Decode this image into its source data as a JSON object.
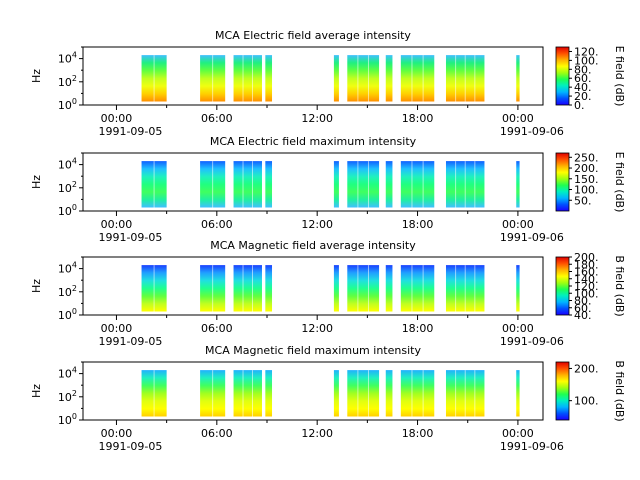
{
  "chart_data": [
    {
      "type": "heatmap",
      "title": "MCA  Electric field average intensity",
      "ylabel": "Hz",
      "yscale": "log",
      "ylim": [
        1,
        100000
      ],
      "y_ticks": [
        {
          "exp": "0"
        },
        {
          "exp": "2"
        },
        {
          "exp": "4"
        }
      ],
      "x_ticks": [
        "00:00",
        "06:00",
        "12:00",
        "18:00",
        "00:00"
      ],
      "x_start_date": "1991-09-05",
      "x_end_date": "1991-09-06",
      "xlim": [
        "1991-09-04 22:00",
        "1991-09-06 01:30"
      ],
      "colorbar": {
        "label": "E field (dB)",
        "range": [
          0,
          130
        ],
        "ticks": [
          "0.",
          "20.",
          "40.",
          "60.",
          "80.",
          "100.",
          "120."
        ]
      },
      "data_intervals_utc_hours": [
        [
          1.5,
          3.0
        ],
        [
          5.0,
          6.5
        ],
        [
          7.0,
          8.7
        ],
        [
          8.9,
          9.3
        ],
        [
          13.0,
          13.3
        ],
        [
          13.8,
          15.7
        ],
        [
          16.1,
          16.5
        ],
        [
          17.0,
          19.0
        ],
        [
          19.7,
          22.0
        ],
        [
          23.9,
          24.1
        ]
      ],
      "palette": "rainbow"
    },
    {
      "type": "heatmap",
      "title": "MCA  Electric field maximum intensity",
      "ylabel": "Hz",
      "yscale": "log",
      "ylim": [
        1,
        100000
      ],
      "y_ticks": [
        {
          "exp": "0"
        },
        {
          "exp": "2"
        },
        {
          "exp": "4"
        }
      ],
      "x_ticks": [
        "00:00",
        "06:00",
        "12:00",
        "18:00",
        "00:00"
      ],
      "x_start_date": "1991-09-05",
      "x_end_date": "1991-09-06",
      "xlim": [
        "1991-09-04 22:00",
        "1991-09-06 01:30"
      ],
      "colorbar": {
        "label": "E field (dB)",
        "range": [
          0,
          270
        ],
        "ticks": [
          "50.",
          "100.",
          "150.",
          "200.",
          "250."
        ]
      },
      "data_intervals_utc_hours": [
        [
          1.5,
          3.0
        ],
        [
          5.0,
          6.5
        ],
        [
          7.0,
          8.7
        ],
        [
          8.9,
          9.3
        ],
        [
          13.0,
          13.3
        ],
        [
          13.8,
          15.7
        ],
        [
          16.1,
          16.5
        ],
        [
          17.0,
          19.0
        ],
        [
          19.7,
          22.0
        ],
        [
          23.9,
          24.1
        ]
      ],
      "palette": "rainbow"
    },
    {
      "type": "heatmap",
      "title": "MCA  Magnetic field average intensity",
      "ylabel": "Hz",
      "yscale": "log",
      "ylim": [
        1,
        100000
      ],
      "y_ticks": [
        {
          "exp": "0"
        },
        {
          "exp": "2"
        },
        {
          "exp": "4"
        }
      ],
      "x_ticks": [
        "00:00",
        "06:00",
        "12:00",
        "18:00",
        "00:00"
      ],
      "x_start_date": "1991-09-05",
      "x_end_date": "1991-09-06",
      "xlim": [
        "1991-09-04 22:00",
        "1991-09-06 01:30"
      ],
      "colorbar": {
        "label": "B field (dB)",
        "range": [
          40,
          200
        ],
        "ticks": [
          "40.",
          "60.",
          "80.",
          "100.",
          "120.",
          "140.",
          "160.",
          "180.",
          "200."
        ]
      },
      "data_intervals_utc_hours": [
        [
          1.5,
          3.0
        ],
        [
          5.0,
          6.5
        ],
        [
          7.0,
          8.7
        ],
        [
          8.9,
          9.3
        ],
        [
          13.0,
          13.3
        ],
        [
          13.8,
          15.7
        ],
        [
          16.1,
          16.5
        ],
        [
          17.0,
          19.0
        ],
        [
          19.7,
          22.0
        ],
        [
          23.9,
          24.1
        ]
      ],
      "palette": "rainbow"
    },
    {
      "type": "heatmap",
      "title": "MCA  Magnetic field maximum intensity",
      "ylabel": "Hz",
      "yscale": "log",
      "ylim": [
        1,
        100000
      ],
      "y_ticks": [
        {
          "exp": "0"
        },
        {
          "exp": "2"
        },
        {
          "exp": "4"
        }
      ],
      "x_ticks": [
        "00:00",
        "06:00",
        "12:00",
        "18:00",
        "00:00"
      ],
      "x_start_date": "1991-09-05",
      "x_end_date": "1991-09-06",
      "xlim": [
        "1991-09-04 22:00",
        "1991-09-06 01:30"
      ],
      "colorbar": {
        "label": "B field (dB)",
        "range": [
          40,
          220
        ],
        "ticks": [
          "100.",
          "200."
        ]
      },
      "data_intervals_utc_hours": [
        [
          1.5,
          3.0
        ],
        [
          5.0,
          6.5
        ],
        [
          7.0,
          8.7
        ],
        [
          8.9,
          9.3
        ],
        [
          13.0,
          13.3
        ],
        [
          13.8,
          15.7
        ],
        [
          16.1,
          16.5
        ],
        [
          17.0,
          19.0
        ],
        [
          19.7,
          22.0
        ],
        [
          23.9,
          24.1
        ]
      ],
      "palette": "rainbow"
    }
  ]
}
